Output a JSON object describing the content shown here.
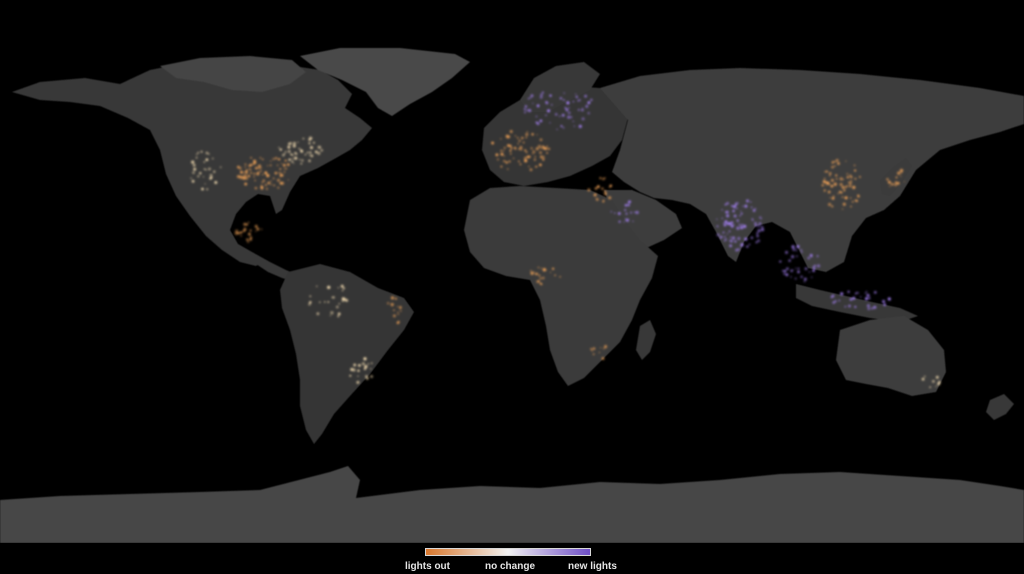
{
  "legend": {
    "left_label": "lights out",
    "middle_label": "no change",
    "right_label": "new lights",
    "gradient": [
      "#d9782e",
      "#f1f1f1",
      "#6f4fc7"
    ]
  },
  "colors": {
    "background": "#000000",
    "land": "#3b3b3b",
    "ice": "#4a4a4a",
    "lights_out": "#f0a257",
    "new_lights": "#a27ff0",
    "steady_lights": "#ffe6b8"
  }
}
